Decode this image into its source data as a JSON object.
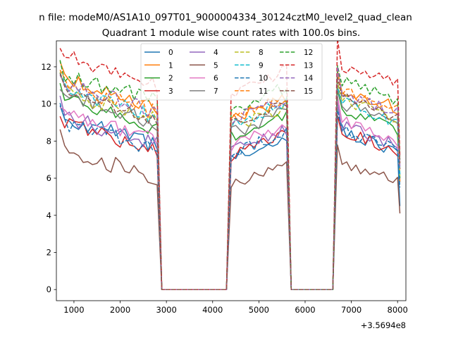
{
  "chart_data": {
    "type": "line",
    "suptitle": "n file: modeM0/AS1A10_097T01_9000004334_30124cztM0_level2_quad_clean",
    "title": "Quadrant 1 module wise count rates with 100.0s bins.",
    "xlabel": "",
    "ylabel": "",
    "x_offset_label": "+3.5694e8",
    "xlim": [
      620,
      8180
    ],
    "ylim": [
      -0.6,
      13.4
    ],
    "xticks": [
      1000,
      2000,
      3000,
      4000,
      5000,
      6000,
      7000,
      8000
    ],
    "xtick_labels": [
      "1000",
      "2000",
      "3000",
      "4000",
      "5000",
      "6000",
      "7000",
      "8000"
    ],
    "yticks": [
      0,
      2,
      4,
      6,
      8,
      10,
      12
    ],
    "ytick_labels": [
      "0",
      "2",
      "4",
      "6",
      "8",
      "10",
      "12"
    ],
    "legend_location": "upper center",
    "bin_width_s": 100.0,
    "segments": [
      {
        "start": 700,
        "end": 2800
      },
      {
        "start": 4400,
        "end": 5600
      },
      {
        "start": 6700,
        "end": 8050
      }
    ],
    "gap_zero_x": [
      2900,
      3000,
      3100,
      3200,
      3300,
      3400,
      3500,
      3600,
      3700,
      3800,
      3900,
      4000,
      4100,
      4200,
      4300,
      5700,
      5800,
      5900,
      6000,
      6100,
      6200,
      6300,
      6400,
      6500,
      6600
    ],
    "series": [
      {
        "name": "0",
        "color": "#1f77b4",
        "dash": "solid",
        "levels": [
          8.5,
          7.7,
          8.0
        ],
        "end_value": 4.5
      },
      {
        "name": "1",
        "color": "#ff7f0e",
        "dash": "solid",
        "levels": [
          10.7,
          9.7,
          10.3
        ],
        "end_value": 5.8
      },
      {
        "name": "2",
        "color": "#2ca02c",
        "dash": "solid",
        "levels": [
          9.5,
          8.8,
          9.2
        ],
        "end_value": 6.0
      },
      {
        "name": "3",
        "color": "#d62728",
        "dash": "solid",
        "levels": [
          8.2,
          7.8,
          8.0
        ],
        "end_value": 7.0
      },
      {
        "name": "4",
        "color": "#9467bd",
        "dash": "solid",
        "levels": [
          8.6,
          8.0,
          8.3
        ],
        "end_value": 6.7
      },
      {
        "name": "5",
        "color": "#8c564b",
        "dash": "solid",
        "levels": [
          6.8,
          6.2,
          6.4
        ],
        "end_value": 4.1
      },
      {
        "name": "6",
        "color": "#e377c2",
        "dash": "solid",
        "levels": [
          8.8,
          8.3,
          8.6
        ],
        "end_value": 6.2
      },
      {
        "name": "7",
        "color": "#7f7f7f",
        "dash": "solid",
        "levels": [
          9.8,
          9.0,
          9.5
        ],
        "end_value": 6.5
      },
      {
        "name": "8",
        "color": "#bcbd22",
        "dash": "dashed",
        "levels": [
          9.9,
          9.3,
          9.7
        ],
        "end_value": 6.0
      },
      {
        "name": "9",
        "color": "#17becf",
        "dash": "dashed",
        "levels": [
          10.1,
          9.5,
          9.6
        ],
        "end_value": 6.2
      },
      {
        "name": "10",
        "color": "#1f77b4",
        "dash": "dashed",
        "levels": [
          8.3,
          7.9,
          8.1
        ],
        "end_value": 5.5
      },
      {
        "name": "11",
        "color": "#ff7f0e",
        "dash": "dashed",
        "levels": [
          10.3,
          9.8,
          10.2
        ],
        "end_value": 6.5
      },
      {
        "name": "12",
        "color": "#2ca02c",
        "dash": "dashed",
        "levels": [
          10.9,
          10.3,
          10.7
        ],
        "end_value": 7.0
      },
      {
        "name": "13",
        "color": "#d62728",
        "dash": "dashed",
        "levels": [
          11.8,
          11.2,
          11.6
        ],
        "end_value": 7.2
      },
      {
        "name": "14",
        "color": "#9467bd",
        "dash": "dashed",
        "levels": [
          10.4,
          9.7,
          10.1
        ],
        "end_value": 6.5
      },
      {
        "name": "15",
        "color": "#8c564b",
        "dash": "dashed",
        "levels": [
          10.0,
          9.4,
          9.8
        ],
        "end_value": 6.8
      }
    ]
  }
}
